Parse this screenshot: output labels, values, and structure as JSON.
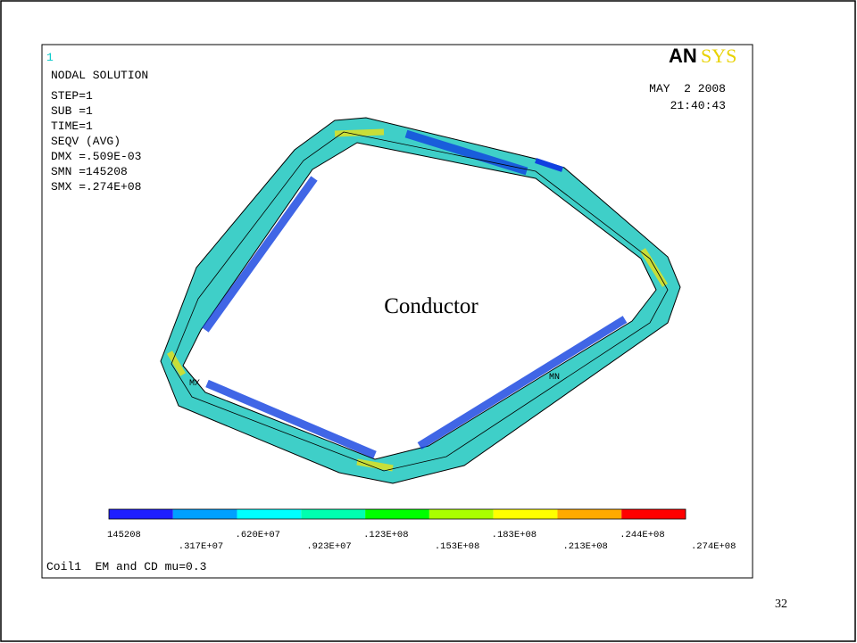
{
  "window_number": "1",
  "logo": {
    "first": "AN",
    "second": "SYS"
  },
  "date": "MAY  2 2008",
  "time": "21:40:43",
  "info": [
    "NODAL SOLUTION",
    "STEP=1",
    "SUB =1",
    "TIME=1",
    "SEQV     (AVG)",
    "DMX =.509E-03",
    "SMN =145208",
    "SMX =.274E+08"
  ],
  "annotation": "Conductor",
  "max_marker": "MX",
  "min_marker": "MN",
  "legend": {
    "colors": [
      "#1e1eff",
      "#00a0ff",
      "#00ffff",
      "#00ffb0",
      "#00ff00",
      "#aaff00",
      "#ffff00",
      "#ffaa00",
      "#ff0000"
    ],
    "labels": [
      "145208",
      ".317E+07",
      ".620E+07",
      ".923E+07",
      ".123E+08",
      ".153E+08",
      ".183E+08",
      ".213E+08",
      ".244E+08",
      ".274E+08"
    ]
  },
  "footer": "Coil1  EM and CD mu=0.3",
  "page_number": "32"
}
